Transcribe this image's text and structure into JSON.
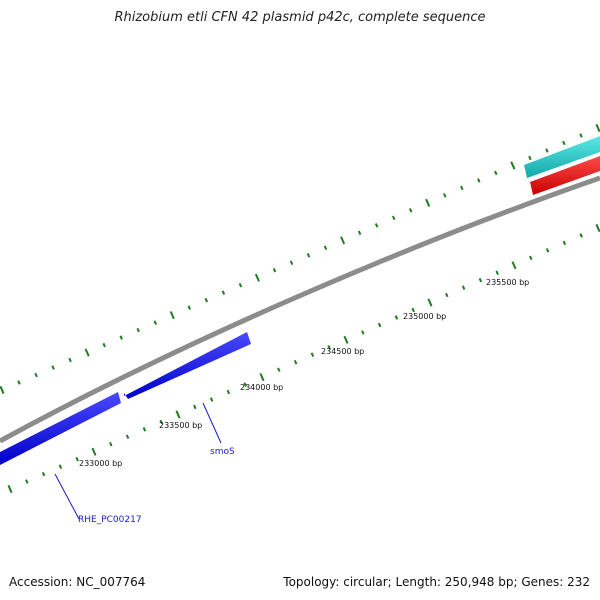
{
  "title": "Rhizobium etli CFN 42 plasmid p42c, complete sequence",
  "footer": {
    "accession": "Accession: NC_007764",
    "summary": "Topology: circular; Length: 250,948 bp; Genes: 232"
  },
  "colors": {
    "forward_gene": "#1e1ef0",
    "reverse_gene_red": "#f01414",
    "reverse_gene_cyan": "#1ecccc",
    "backbone": "#8c8c8c",
    "ticks": "#1e7d1e",
    "gene_label": "#1a1acc"
  },
  "ruler_labels": [
    "233000 bp",
    "233500 bp",
    "234000 bp",
    "234500 bp",
    "235000 bp",
    "235500 bp"
  ],
  "gene_labels": [
    "RHE_PC00217",
    "smoS"
  ]
}
